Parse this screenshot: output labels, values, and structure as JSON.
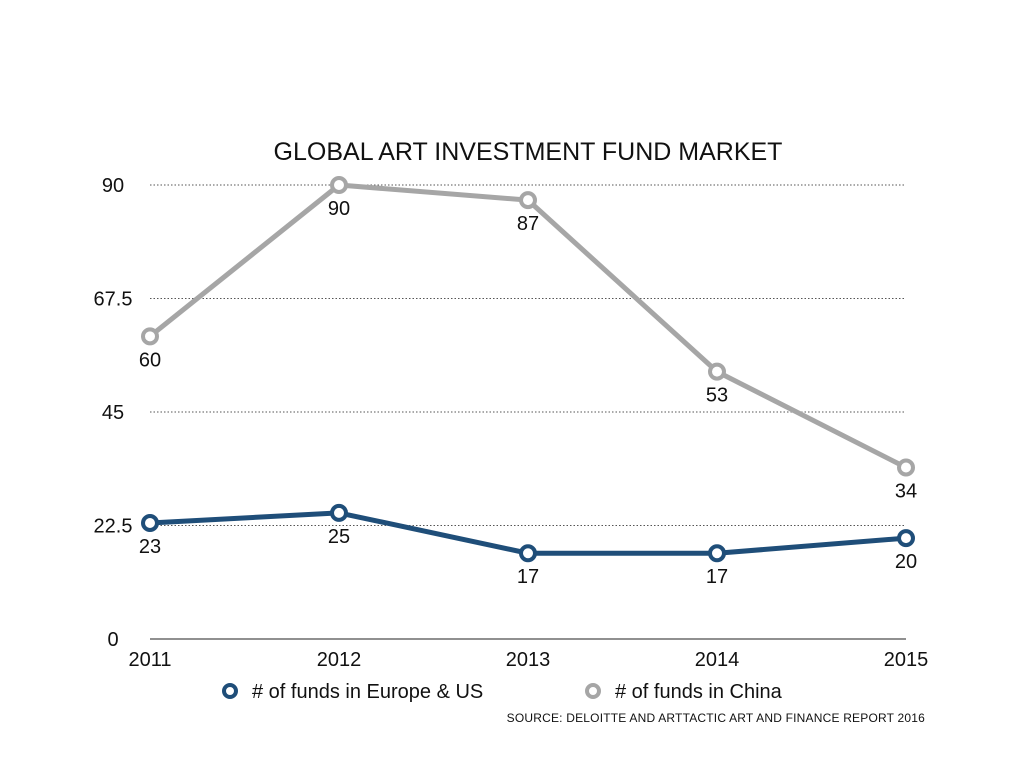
{
  "chart_data": {
    "type": "line",
    "title": "GLOBAL ART INVESTMENT FUND MARKET",
    "xlabel": "",
    "ylabel": "",
    "categories": [
      "2011",
      "2012",
      "2013",
      "2014",
      "2015"
    ],
    "y_ticks": [
      "0",
      "22.5",
      "45",
      "67.5",
      "90"
    ],
    "ylim": [
      0,
      90
    ],
    "grid": "horizontal dotted",
    "legend_position": "bottom",
    "series": [
      {
        "name": "# of funds in Europe & US",
        "color": "#1f4e79",
        "values": [
          23,
          25,
          17,
          17,
          20
        ],
        "labels": [
          "23",
          "25",
          "17",
          "17",
          "20"
        ]
      },
      {
        "name": "# of funds in China",
        "color": "#a6a6a6",
        "values": [
          60,
          90,
          87,
          53,
          34
        ],
        "labels": [
          "60",
          "90",
          "87",
          "53",
          "34"
        ]
      }
    ],
    "source": "SOURCE: DELOITTE AND ARTTACTIC ART AND FINANCE REPORT 2016"
  }
}
